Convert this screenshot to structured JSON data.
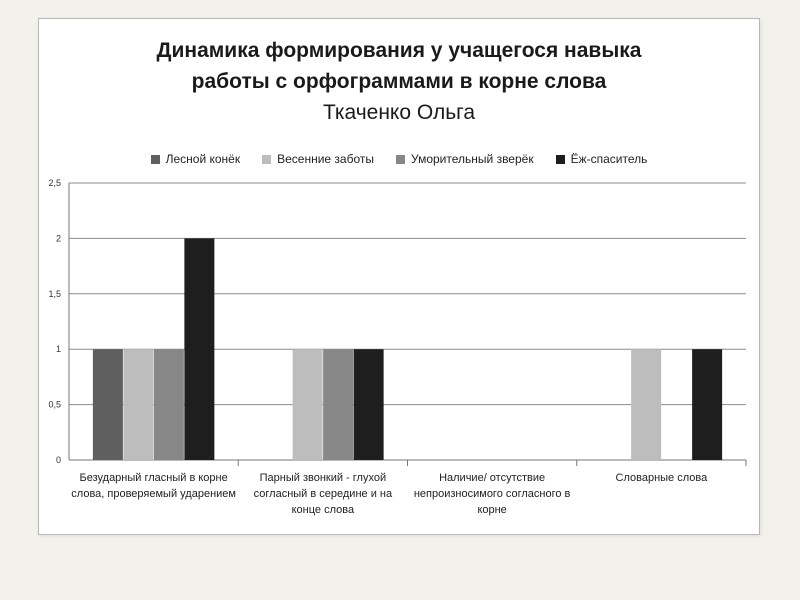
{
  "chart_data": {
    "type": "bar",
    "title_line1": "Динамика формирования у учащегося навыка",
    "title_line2": "работы с орфограммами в корне слова",
    "subtitle": "Ткаченко Ольга",
    "xlabel": "",
    "ylabel": "",
    "ylim": [
      0,
      2.5
    ],
    "yticks": [
      "0",
      "0,5",
      "1",
      "1,5",
      "2",
      "2,5"
    ],
    "grid": true,
    "legend_position": "top",
    "categories": [
      "Безударный гласный в корне слова, проверяемый ударением",
      "Парный звонкий - глухой согласный в середине и на конце слова",
      "Наличие/ отсутствие непроизносимого согласного в корне",
      "Словарные слова"
    ],
    "series": [
      {
        "name": "Лесной конёк",
        "color": "#5f5f5f",
        "values": [
          1,
          0,
          0,
          0
        ]
      },
      {
        "name": "Весенние заботы",
        "color": "#bdbdbd",
        "values": [
          1,
          1,
          0,
          1
        ]
      },
      {
        "name": "Уморительный зверёк",
        "color": "#878787",
        "values": [
          1,
          1,
          0,
          0
        ]
      },
      {
        "name": "Ёж-спаситель",
        "color": "#1e1e1e",
        "values": [
          2,
          1,
          0,
          1
        ]
      }
    ]
  }
}
